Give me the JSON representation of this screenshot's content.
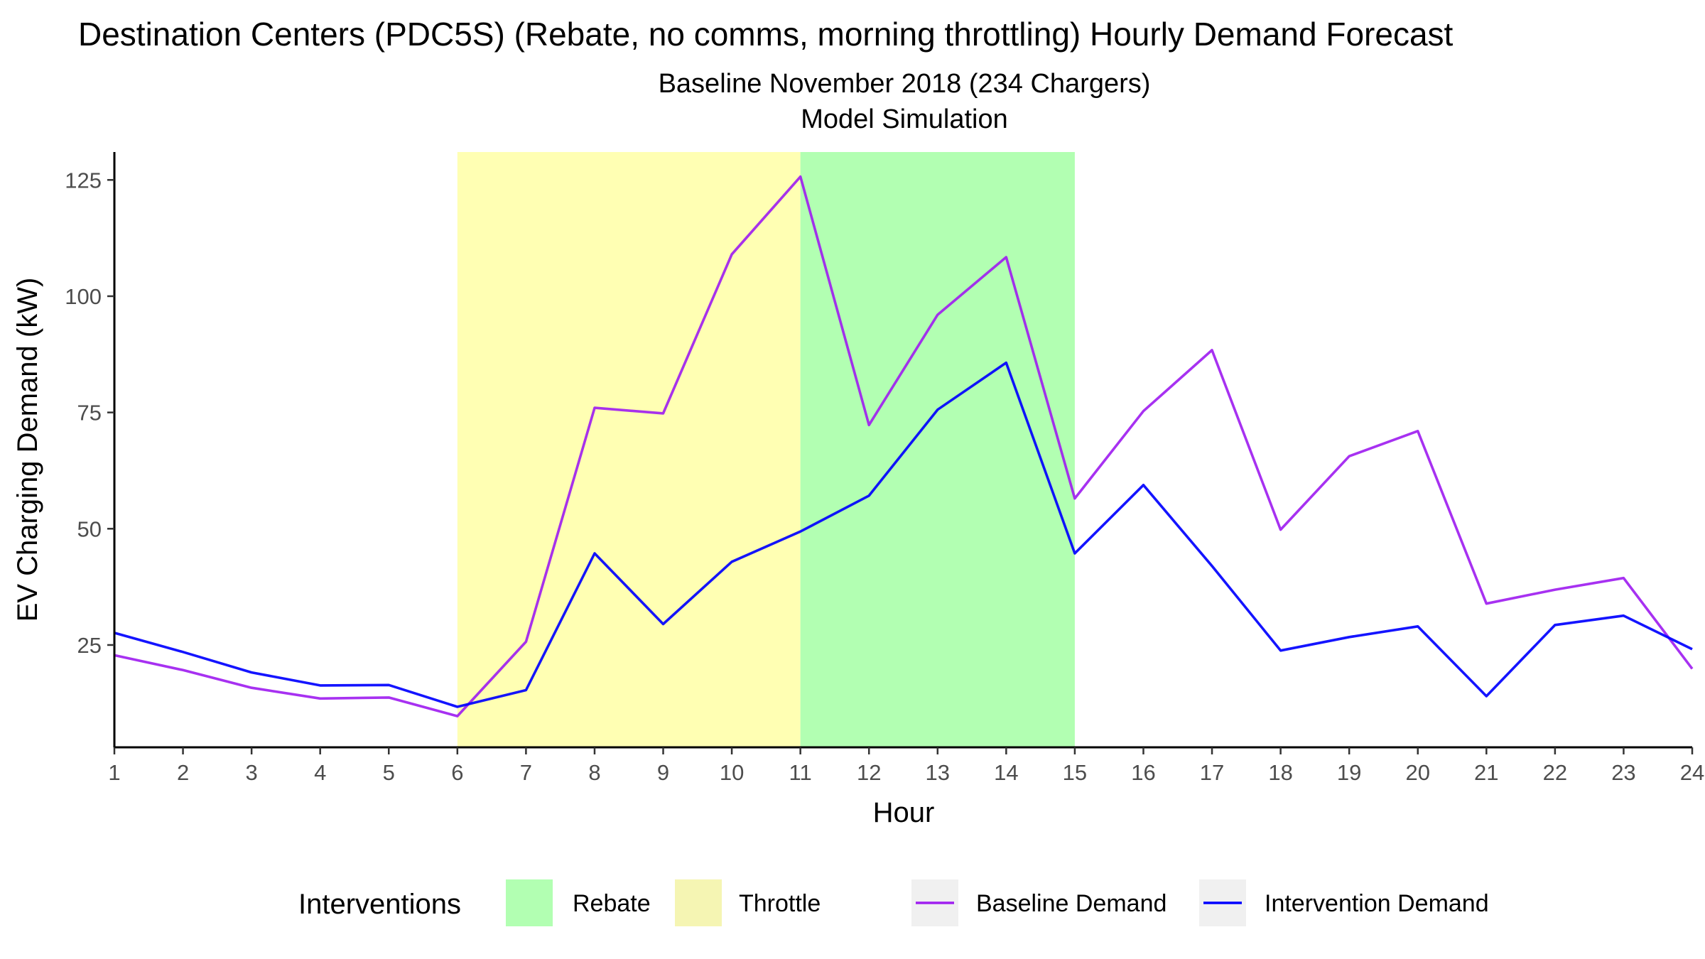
{
  "chart_data": {
    "type": "line",
    "title": "Destination Centers (PDC5S) (Rebate, no comms, morning throttling) Hourly Demand Forecast",
    "subtitle_lines": [
      "Baseline November 2018 (234 Chargers)",
      "Model Simulation"
    ],
    "xlabel": "Hour",
    "ylabel": "EV Charging Demand (kW)",
    "x": [
      1,
      2,
      3,
      4,
      5,
      6,
      7,
      8,
      9,
      10,
      11,
      12,
      13,
      14,
      15,
      16,
      17,
      18,
      19,
      20,
      21,
      22,
      23,
      24
    ],
    "x_ticks": [
      "1",
      "2",
      "3",
      "4",
      "5",
      "6",
      "7",
      "8",
      "9",
      "10",
      "11",
      "12",
      "13",
      "14",
      "15",
      "16",
      "17",
      "18",
      "19",
      "20",
      "21",
      "22",
      "23",
      "24"
    ],
    "y_ticks": [
      25,
      50,
      75,
      100,
      125
    ],
    "xlim": [
      1,
      24
    ],
    "ylim": [
      3,
      131
    ],
    "grid": false,
    "legend_position": "bottom",
    "legend_title": "Interventions",
    "series": [
      {
        "name": "Baseline Demand",
        "color": "#a020f0",
        "values": [
          22.8,
          19.6,
          15.8,
          13.5,
          13.7,
          9.7,
          25.7,
          76,
          74.8,
          109,
          125.7,
          72.3,
          96,
          108.4,
          56.5,
          75.3,
          88.4,
          49.8,
          65.6,
          71,
          33.9,
          36.9,
          39.4,
          19.9
        ]
      },
      {
        "name": "Intervention Demand",
        "color": "#0000ff",
        "values": [
          27.6,
          23.5,
          19.1,
          16.3,
          16.4,
          11.7,
          15.3,
          44.7,
          29.5,
          42.9,
          49.4,
          57.1,
          75.6,
          85.7,
          44.7,
          59.4,
          42,
          23.8,
          26.7,
          29,
          14,
          29.3,
          31.3,
          24.1
        ]
      }
    ],
    "bands": [
      {
        "name": "Throttle",
        "x_start": 6,
        "x_end": 11,
        "color": "#ffffb3"
      },
      {
        "name": "Rebate",
        "x_start": 11,
        "x_end": 15,
        "color": "#b2ffb2"
      }
    ],
    "legend_items": [
      {
        "label": "Rebate",
        "kind": "fill",
        "color": "#b2ffb2"
      },
      {
        "label": "Throttle",
        "kind": "fill",
        "color": "#f5f5b3"
      },
      {
        "label": "Baseline Demand",
        "kind": "line",
        "color": "#a020f0"
      },
      {
        "label": "Intervention Demand",
        "kind": "line",
        "color": "#0000ff"
      }
    ]
  }
}
